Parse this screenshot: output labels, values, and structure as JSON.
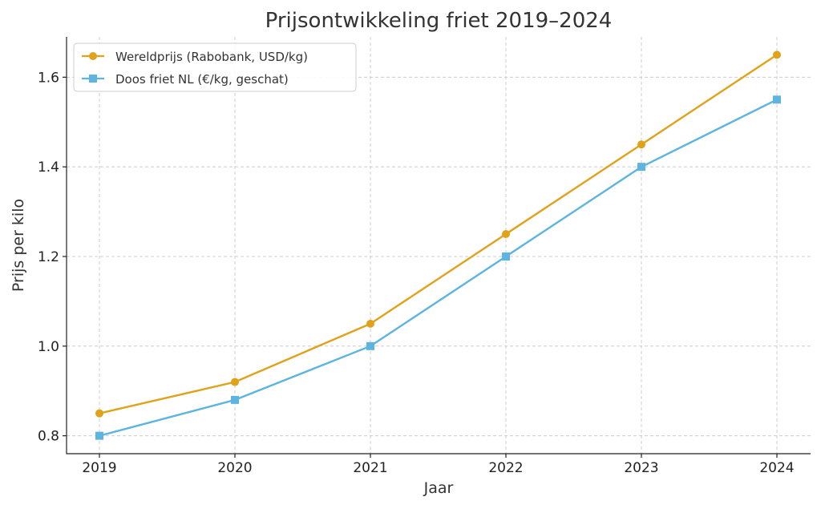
{
  "chart_data": {
    "type": "line",
    "title": "Prijsontwikkeling friet 2019–2024",
    "xlabel": "Jaar",
    "ylabel": "Prijs per kilo",
    "categories": [
      "2019",
      "2020",
      "2021",
      "2022",
      "2023",
      "2024"
    ],
    "x": [
      2019,
      2020,
      2021,
      2022,
      2023,
      2024
    ],
    "ylim": [
      0.76,
      1.69
    ],
    "yticks": [
      0.8,
      1.0,
      1.2,
      1.4,
      1.6
    ],
    "ytick_labels": [
      "0.8",
      "1.0",
      "1.2",
      "1.4",
      "1.6"
    ],
    "grid": true,
    "legend_position": "top-left",
    "series": [
      {
        "name": "Wereldprijs (Rabobank, USD/kg)",
        "values": [
          0.85,
          0.92,
          1.05,
          1.25,
          1.45,
          1.65
        ],
        "color": "#E0A21A",
        "marker": "circle"
      },
      {
        "name": "Doos friet NL (€/kg, geschat)",
        "values": [
          0.8,
          0.88,
          1.0,
          1.2,
          1.4,
          1.55
        ],
        "color": "#5DB4E0",
        "marker": "square"
      }
    ]
  }
}
